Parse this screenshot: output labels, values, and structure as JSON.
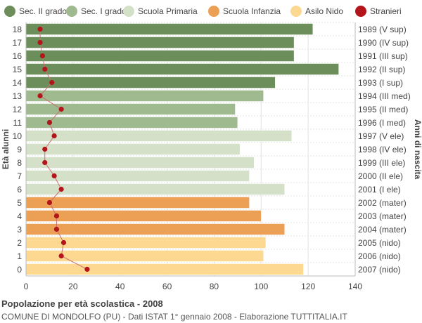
{
  "legend": [
    {
      "label": "Sec. II grado",
      "color": "#6b8e5a"
    },
    {
      "label": "Sec. I grado",
      "color": "#9fba8e"
    },
    {
      "label": "Scuola Primaria",
      "color": "#d5e0c8"
    },
    {
      "label": "Scuola Infanzia",
      "color": "#eca056"
    },
    {
      "label": "Asilo Nido",
      "color": "#fcd890"
    },
    {
      "label": "Stranieri",
      "color": "#b3151a"
    }
  ],
  "footer": {
    "title": "Popolazione per età scolastica - 2008",
    "subtitle": "COMUNE DI MONDOLFO (PU) - Dati ISTAT 1° gennaio 2008 - Elaborazione TUTTITALIA.IT"
  },
  "chart_data": {
    "type": "bar",
    "orientation": "horizontal",
    "ylabel": "Età alunni",
    "ylabel_right": "Anni di nascita",
    "xlim": [
      0,
      140
    ],
    "x_ticks": [
      0,
      20,
      40,
      60,
      80,
      100,
      120,
      140
    ],
    "grid": true,
    "legend_position": "top",
    "rows": [
      {
        "age": "18",
        "birth": "1989 (V sup)",
        "value": 122,
        "foreign": 6,
        "group": 0
      },
      {
        "age": "17",
        "birth": "1990 (IV sup)",
        "value": 114,
        "foreign": 6,
        "group": 0
      },
      {
        "age": "16",
        "birth": "1991 (III sup)",
        "value": 114,
        "foreign": 7,
        "group": 0
      },
      {
        "age": "15",
        "birth": "1992 (II sup)",
        "value": 133,
        "foreign": 8,
        "group": 0
      },
      {
        "age": "14",
        "birth": "1993 (I sup)",
        "value": 106,
        "foreign": 11,
        "group": 0
      },
      {
        "age": "13",
        "birth": "1994 (III med)",
        "value": 101,
        "foreign": 6,
        "group": 1
      },
      {
        "age": "12",
        "birth": "1995 (II med)",
        "value": 89,
        "foreign": 15,
        "group": 1
      },
      {
        "age": "11",
        "birth": "1996 (I med)",
        "value": 90,
        "foreign": 10,
        "group": 1
      },
      {
        "age": "10",
        "birth": "1997 (V ele)",
        "value": 113,
        "foreign": 12,
        "group": 2
      },
      {
        "age": "9",
        "birth": "1998 (IV ele)",
        "value": 91,
        "foreign": 8,
        "group": 2
      },
      {
        "age": "8",
        "birth": "1999 (III ele)",
        "value": 97,
        "foreign": 8,
        "group": 2
      },
      {
        "age": "7",
        "birth": "2000 (II ele)",
        "value": 95,
        "foreign": 12,
        "group": 2
      },
      {
        "age": "6",
        "birth": "2001 (I ele)",
        "value": 110,
        "foreign": 15,
        "group": 2
      },
      {
        "age": "5",
        "birth": "2002 (mater)",
        "value": 95,
        "foreign": 10,
        "group": 3
      },
      {
        "age": "4",
        "birth": "2003 (mater)",
        "value": 100,
        "foreign": 13,
        "group": 3
      },
      {
        "age": "3",
        "birth": "2004 (mater)",
        "value": 110,
        "foreign": 13,
        "group": 3
      },
      {
        "age": "2",
        "birth": "2005 (nido)",
        "value": 102,
        "foreign": 16,
        "group": 4
      },
      {
        "age": "1",
        "birth": "2006 (nido)",
        "value": 101,
        "foreign": 15,
        "group": 4
      },
      {
        "age": "0",
        "birth": "2007 (nido)",
        "value": 118,
        "foreign": 26,
        "group": 4
      }
    ]
  }
}
